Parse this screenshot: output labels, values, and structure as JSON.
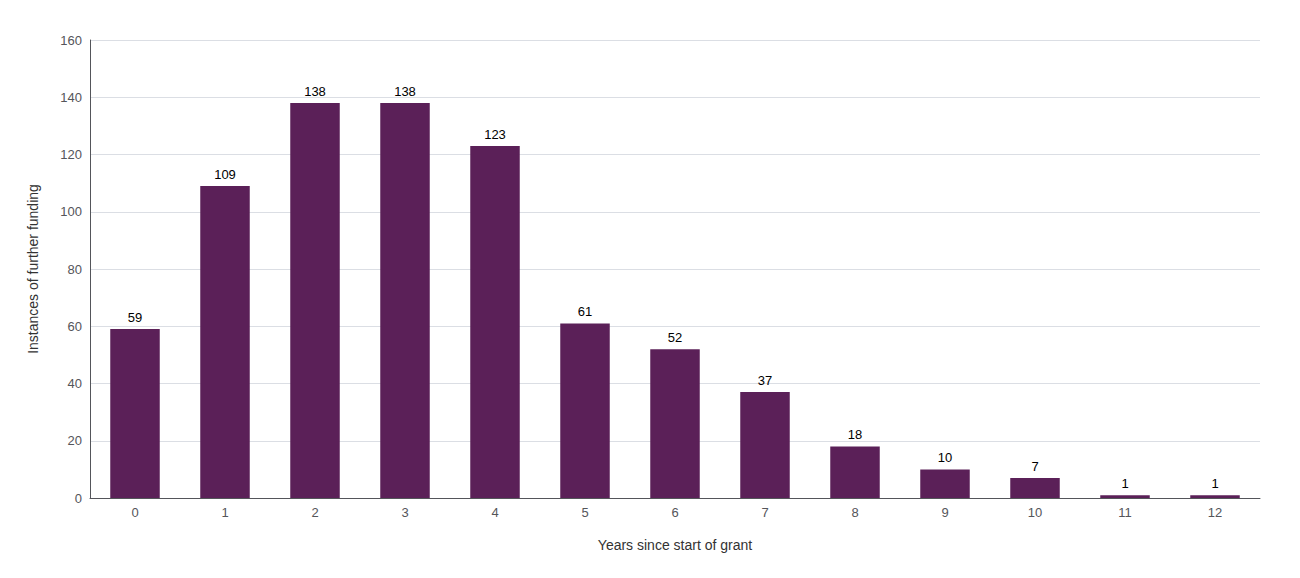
{
  "chart_data": {
    "type": "bar",
    "xlabel": "Years since start of grant",
    "ylabel": "Instances of further funding",
    "categories": [
      0,
      1,
      2,
      3,
      4,
      5,
      6,
      7,
      8,
      9,
      10,
      11,
      12
    ],
    "values": [
      59,
      109,
      138,
      138,
      123,
      61,
      52,
      37,
      18,
      10,
      7,
      1,
      1
    ],
    "color": "#5b2058",
    "ylim": [
      0,
      160
    ],
    "yticks": [
      0,
      20,
      40,
      60,
      80,
      100,
      120,
      140,
      160
    ],
    "grid": true,
    "data_labels": true
  }
}
